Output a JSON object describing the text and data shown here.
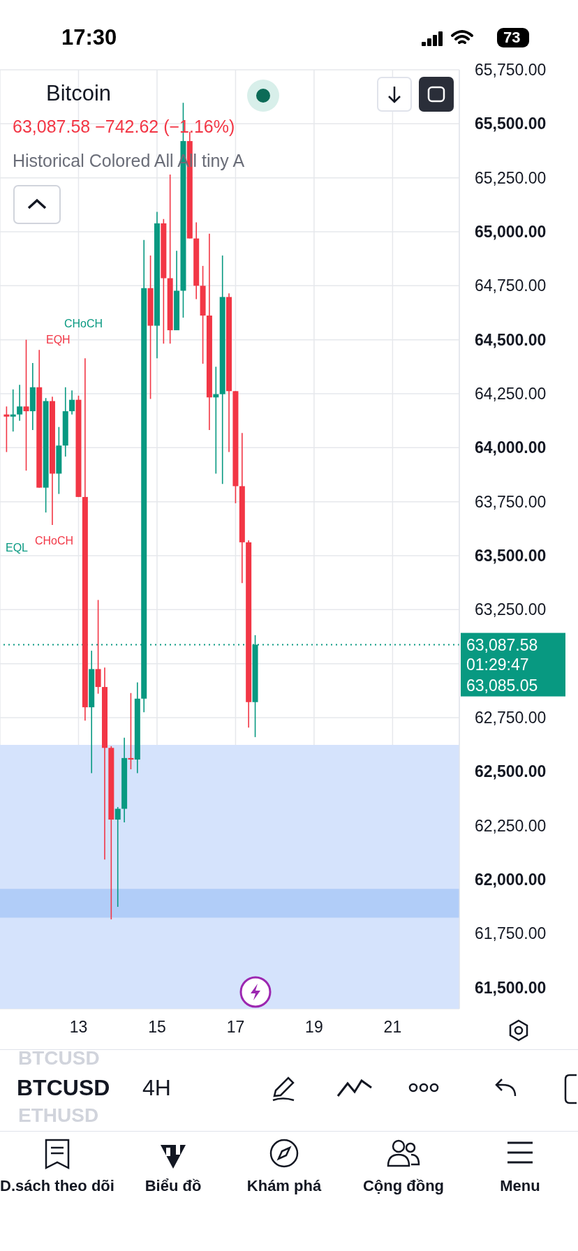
{
  "chart_data": {
    "type": "candlestick",
    "title": "Bitcoin",
    "subtitle": "63,087.58 −742.62 (−1.16%)",
    "x": [
      11.167,
      11.333,
      11.5,
      11.667,
      11.833,
      12,
      12.167,
      12.333,
      12.5,
      12.667,
      12.833,
      13,
      13.167,
      13.333,
      13.5,
      13.667,
      13.833,
      14,
      14.167,
      14.333,
      14.5,
      14.667,
      14.833,
      15,
      15.167,
      15.333,
      15.5,
      15.667,
      15.833,
      16,
      16.167,
      16.333,
      16.5,
      16.667,
      16.833,
      17,
      17.167,
      17.333,
      17.5
    ],
    "ohlc": [
      [
        64154,
        64191,
        63980,
        64144
      ],
      [
        64144,
        64270,
        64075,
        64154
      ],
      [
        64154,
        64291,
        64125,
        64191
      ],
      [
        64191,
        64500,
        63894,
        64169
      ],
      [
        64169,
        64392,
        64082,
        64280
      ],
      [
        64280,
        64453,
        63815,
        63815
      ],
      [
        63815,
        64230,
        63700,
        64216
      ],
      [
        64216,
        64236,
        63642,
        63880
      ],
      [
        63880,
        64096,
        63786,
        64010
      ],
      [
        64010,
        64280,
        63959,
        64169
      ],
      [
        64169,
        64265,
        64154,
        64222
      ],
      [
        64222,
        64241,
        63772,
        63772
      ],
      [
        63772,
        64414,
        62736,
        62798
      ],
      [
        62798,
        63060,
        62493,
        62975
      ],
      [
        62975,
        63295,
        62861,
        62892
      ],
      [
        62892,
        62982,
        62093,
        62610
      ],
      [
        62610,
        62618,
        61816,
        62278
      ],
      [
        62278,
        62336,
        61874,
        62328
      ],
      [
        62328,
        62657,
        62265,
        62563
      ],
      [
        62563,
        62864,
        62511,
        62556
      ],
      [
        62556,
        62913,
        62493,
        62838
      ],
      [
        62838,
        64962,
        62775,
        64739
      ],
      [
        64739,
        64890,
        64226,
        64565
      ],
      [
        64565,
        65092,
        64414,
        65039
      ],
      [
        65039,
        65059,
        64482,
        64785
      ],
      [
        64785,
        65265,
        64482,
        64544
      ],
      [
        64544,
        64912,
        64544,
        64727
      ],
      [
        64727,
        65597,
        64602,
        65420
      ],
      [
        65420,
        65463,
        64969,
        64969
      ],
      [
        64969,
        65044,
        64688,
        64750
      ],
      [
        64750,
        64842,
        64389,
        64612
      ],
      [
        64612,
        64991,
        64082,
        64233
      ],
      [
        64233,
        64375,
        63880,
        64248
      ],
      [
        64248,
        64890,
        63832,
        64698
      ],
      [
        64698,
        64715,
        63980,
        64262
      ],
      [
        64262,
        64262,
        63743,
        63822
      ],
      [
        63822,
        64068,
        63373,
        63562
      ],
      [
        63562,
        63571,
        62704,
        62822
      ],
      [
        62822,
        63132,
        62660,
        63088
      ]
    ],
    "colors": [
      "#f23645",
      "#089981",
      "#089981",
      "#f23645",
      "#089981",
      "#f23645",
      "#089981",
      "#f23645",
      "#089981",
      "#089981",
      "#089981",
      "#f23645",
      "#f23645",
      "#089981",
      "#f23645",
      "#f23645",
      "#f23645",
      "#089981",
      "#089981",
      "#f23645",
      "#089981",
      "#089981",
      "#f23645",
      "#089981",
      "#f23645",
      "#f23645",
      "#089981",
      "#089981",
      "#f23645",
      "#f23645",
      "#f23645",
      "#f23645",
      "#089981",
      "#089981",
      "#f23645",
      "#f23645",
      "#f23645",
      "#f23645",
      "#089981"
    ],
    "xlim": [
      11,
      22.7
    ],
    "xticks": [
      13,
      15,
      17,
      19,
      21
    ],
    "ylim": [
      61402,
      65750
    ],
    "yticks": [
      {
        "value": 61500,
        "label": "61,500.00"
      },
      {
        "value": 61750,
        "label": "61,750.00"
      },
      {
        "value": 62000,
        "label": "62,000.00"
      },
      {
        "value": 62250,
        "label": "62,250.00"
      },
      {
        "value": 62500,
        "label": "62,500.00"
      },
      {
        "value": 62750,
        "label": "62,750.00"
      },
      {
        "value": 63000,
        "label": null
      },
      {
        "value": 63250,
        "label": "63,250.00"
      },
      {
        "value": 63500,
        "label": "63,500.00"
      },
      {
        "value": 63750,
        "label": "63,750.00"
      },
      {
        "value": 64000,
        "label": "64,000.00"
      },
      {
        "value": 64250,
        "label": "64,250.00"
      },
      {
        "value": 64500,
        "label": "64,500.00"
      },
      {
        "value": 64750,
        "label": "64,750.00"
      },
      {
        "value": 65000,
        "label": "65,000.00"
      },
      {
        "value": 65250,
        "label": "65,250.00"
      },
      {
        "value": 65500,
        "label": "65,500.00"
      },
      {
        "value": 65750,
        "label": "65,750.00"
      }
    ],
    "grid": true,
    "bands": [
      {
        "axis": "y",
        "from": 61402,
        "to": 62624,
        "color": "#d5e3fc"
      },
      {
        "axis": "y",
        "from": 61824,
        "to": 61957,
        "color": "#b1cdf8"
      }
    ],
    "ref_lines": [
      {
        "axis": "y",
        "value": 63087.58,
        "label": "63,087.58",
        "color": "#089981",
        "line_style": "dotted"
      }
    ],
    "annotations": [
      "CHoCH",
      "EQH",
      "CHoCH",
      "EQL",
      "Historical Colored All All tiny A",
      "01:29:47",
      "63,085.05",
      "17:30",
      "73",
      "BTCUSD",
      "BTCUSD",
      "4H",
      "ETHUSD",
      "D.sách theo dõi",
      "Biểu đồ",
      "Khám phá",
      "Cộng đồng",
      "Menu"
    ]
  }
}
